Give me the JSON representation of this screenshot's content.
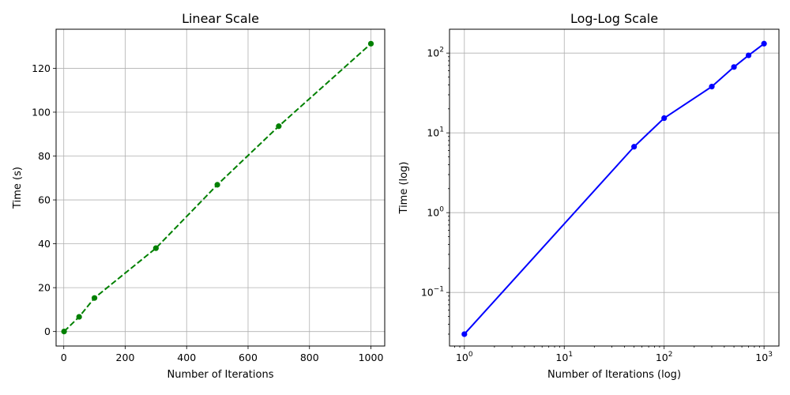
{
  "chart_data": [
    {
      "type": "line",
      "title": "Linear Scale",
      "xlabel": "Number of Iterations",
      "ylabel": "Time (s)",
      "xscale": "linear",
      "yscale": "linear",
      "xlim": [
        -25,
        1045
      ],
      "ylim": [
        -6.6,
        137.8
      ],
      "xticks": [
        0,
        200,
        400,
        600,
        800,
        1000
      ],
      "yticks": [
        0,
        20,
        40,
        60,
        80,
        100,
        120
      ],
      "grid": true,
      "series": [
        {
          "x": [
            1,
            50,
            100,
            300,
            500,
            700,
            1000
          ],
          "y": [
            0.03,
            6.7,
            15.3,
            38.0,
            66.9,
            93.6,
            131.2
          ],
          "color": "#008000",
          "linestyle": "dashed",
          "marker": "circle"
        }
      ]
    },
    {
      "type": "line",
      "title": "Log-Log Scale",
      "xlabel": "Number of Iterations (log)",
      "ylabel": "Time (log)",
      "xscale": "log",
      "yscale": "log",
      "xlim": [
        0.71,
        1410
      ],
      "ylim": [
        0.0213,
        199
      ],
      "xticks": [
        1,
        10,
        100,
        1000
      ],
      "yticks": [
        0.1,
        1,
        10,
        100
      ],
      "grid": true,
      "series": [
        {
          "x": [
            1,
            50,
            100,
            300,
            500,
            700,
            1000
          ],
          "y": [
            0.03,
            6.7,
            15.3,
            38.0,
            66.9,
            93.6,
            131.2
          ],
          "color": "#0000ff",
          "linestyle": "solid",
          "marker": "circle"
        }
      ]
    }
  ]
}
